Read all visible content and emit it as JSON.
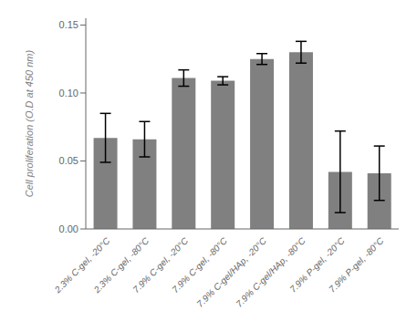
{
  "chart_data": {
    "type": "bar",
    "categories": [
      "2.3% C-gel, -20°C",
      "2.3% C-gel, -80°C",
      "7.9% C-gel, -20°C",
      "7.9% C-gel, -80°C",
      "7.9% C-gel/HAp, -20°C",
      "7.9% C-gel/HAp, -80°C",
      "7.9% P-gel, -20°C",
      "7.9% P-gel, -80°C"
    ],
    "values": [
      0.067,
      0.066,
      0.111,
      0.109,
      0.125,
      0.13,
      0.042,
      0.041
    ],
    "errors": [
      0.018,
      0.013,
      0.006,
      0.003,
      0.004,
      0.008,
      0.03,
      0.02
    ],
    "color": "#808080",
    "ylabel": "Cell proliferation (O.D at 450 nm)",
    "ylim": [
      0.0,
      0.155
    ],
    "yticks": [
      {
        "value": 0.0,
        "label": "0.00"
      },
      {
        "value": 0.05,
        "label": "0.05"
      },
      {
        "value": 0.1,
        "label": "0.10"
      },
      {
        "value": 0.15,
        "label": "0.15"
      }
    ],
    "grid": false
  }
}
